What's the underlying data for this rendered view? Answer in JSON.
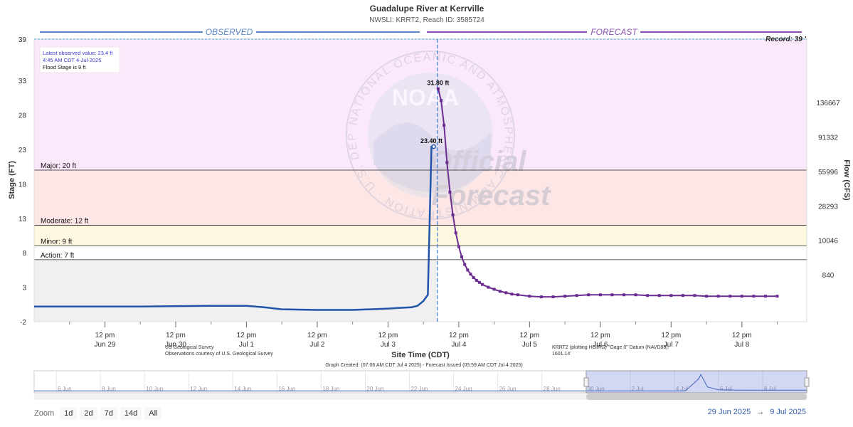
{
  "chart_data": {
    "type": "line",
    "title": "Guadalupe River at Kerrville",
    "subtitle": "NWSLI: KRRT2, Reach ID: 3585724",
    "xlabel": "Site Time (CDT)",
    "ylabel": "Stage (FT)",
    "y2label": "Flow (CFS)",
    "ylim": [
      -2,
      39
    ],
    "xlim_hours": [
      -12,
      250
    ],
    "x_ticks": [
      {
        "h": 12,
        "top": "12 pm",
        "bottom": "Jun 29"
      },
      {
        "h": 36,
        "top": "12 pm",
        "bottom": "Jun 30"
      },
      {
        "h": 60,
        "top": "12 pm",
        "bottom": "Jul 1"
      },
      {
        "h": 84,
        "top": "12 pm",
        "bottom": "Jul 2"
      },
      {
        "h": 108,
        "top": "12 pm",
        "bottom": "Jul 3"
      },
      {
        "h": 132,
        "top": "12 pm",
        "bottom": "Jul 4"
      },
      {
        "h": 156,
        "top": "12 pm",
        "bottom": "Jul 5"
      },
      {
        "h": 180,
        "top": "12 pm",
        "bottom": "Jul 6"
      },
      {
        "h": 204,
        "top": "12 pm",
        "bottom": "Jul 7"
      },
      {
        "h": 228,
        "top": "12 pm",
        "bottom": "Jul 8"
      }
    ],
    "y_ticks": [
      "-2",
      "3",
      "8",
      "13",
      "18",
      "23",
      "28",
      "33",
      "39"
    ],
    "y2_ticks": [
      {
        "stage": 4.8,
        "label": "840"
      },
      {
        "stage": 9.8,
        "label": "10046"
      },
      {
        "stage": 14.8,
        "label": "28293"
      },
      {
        "stage": 19.8,
        "label": "55996"
      },
      {
        "stage": 24.8,
        "label": "91332"
      },
      {
        "stage": 29.8,
        "label": "136667"
      }
    ],
    "thresholds": [
      {
        "name": "Major: 20 ft",
        "value": 20,
        "band_top": 39,
        "color": "#fbe8fb"
      },
      {
        "name": "Moderate: 12 ft",
        "value": 12,
        "band_top": 20,
        "color": "#fde6e6"
      },
      {
        "name": "Minor: 9 ft",
        "value": 9,
        "band_top": 12,
        "color": "#fff8e0"
      },
      {
        "name": "Action: 7 ft",
        "value": 7,
        "band_top": 9,
        "color": "#ffffff"
      }
    ],
    "below_action_color": "#f0f0f0",
    "record": {
      "value": 39,
      "label": "Record: 39 '"
    },
    "observed_label": "OBSERVED",
    "forecast_label": "FORECAST",
    "now_hour": 124.75,
    "series": [
      {
        "name": "Observed",
        "color": "#1f55a8",
        "x": [
          -12,
          0,
          24,
          48,
          60,
          66,
          72,
          84,
          96,
          102,
          108,
          112,
          116,
          118,
          120,
          121.5,
          122.75,
          123.5
        ],
        "y": [
          0.2,
          0.2,
          0.2,
          0.3,
          0.3,
          0.1,
          -0.2,
          -0.3,
          -0.3,
          -0.2,
          -0.1,
          0.0,
          0.1,
          0.3,
          1.0,
          1.9,
          23.4,
          23.4
        ]
      },
      {
        "name": "Forecast",
        "color": "#6b2c91",
        "x": [
          125,
          126,
          127,
          128,
          129,
          130,
          131,
          132,
          133,
          134,
          135,
          136,
          137,
          138,
          139,
          140,
          142,
          144,
          146,
          148,
          150,
          152,
          156,
          160,
          164,
          168,
          172,
          176,
          180,
          184,
          188,
          192,
          196,
          200,
          204,
          208,
          212,
          216,
          220,
          224,
          228,
          232,
          236,
          240
        ],
        "y": [
          31.8,
          30.1,
          26.5,
          21.1,
          16.8,
          13.5,
          10.9,
          8.9,
          7.4,
          6.3,
          5.5,
          4.9,
          4.4,
          4.0,
          3.7,
          3.4,
          3.0,
          2.7,
          2.4,
          2.2,
          2.0,
          1.9,
          1.7,
          1.6,
          1.6,
          1.7,
          1.8,
          1.9,
          1.9,
          1.9,
          1.9,
          1.9,
          1.8,
          1.8,
          1.8,
          1.8,
          1.8,
          1.7,
          1.7,
          1.7,
          1.7,
          1.7,
          1.7,
          1.7
        ]
      }
    ],
    "point_labels": [
      {
        "x": 122.75,
        "y": 23.4,
        "text": "23.40 ft"
      },
      {
        "x": 125,
        "y": 31.8,
        "text": "31.80 ft"
      }
    ],
    "info_box": {
      "line1": "Latest observed value: 23.4 ft",
      "line2": "4:45 AM CDT 4-Jul-2025",
      "line3": "Flood Stage is 9 ft"
    },
    "watermark": {
      "logo": "NOAA",
      "seal_text": "NATIONAL OCEANIC AND ATMOSPHERIC ADMINISTRATION · U.S. DEPARTMENT OF COMMERCE ·",
      "line1": "Official",
      "line2": "Forecast"
    },
    "footer": {
      "left_line1": "US Geological Survey",
      "left_line2": "Observations courtesy of U.S. Geological Survey",
      "right_line1": "KRRT2 (plotting HGIRG) \"Gage 0\" Datum (NAVD88):",
      "right_line2": "1601.14'",
      "created": "Graph Created: (07:06 AM CDT Jul 4 2025) - Forecast Issued (05:59 AM CDT Jul 4 2025)"
    },
    "navigator": {
      "labels": [
        "6 Jun",
        "8 Jun",
        "10 Jun",
        "12 Jun",
        "14 Jun",
        "16 Jun",
        "18 Jun",
        "20 Jun",
        "22 Jun",
        "24 Jun",
        "26 Jun",
        "28 Jun",
        "30 Jun",
        "2 Jul",
        "4 Jul",
        "6 Jul",
        "8 Jul"
      ],
      "start_day": 5,
      "end_day": 40
    }
  },
  "zoom": {
    "label": "Zoom",
    "buttons": [
      "1d",
      "2d",
      "7d",
      "14d",
      "All"
    ]
  },
  "range": {
    "from": "29 Jun 2025",
    "arrow": "→",
    "to": "9 Jul 2025"
  }
}
